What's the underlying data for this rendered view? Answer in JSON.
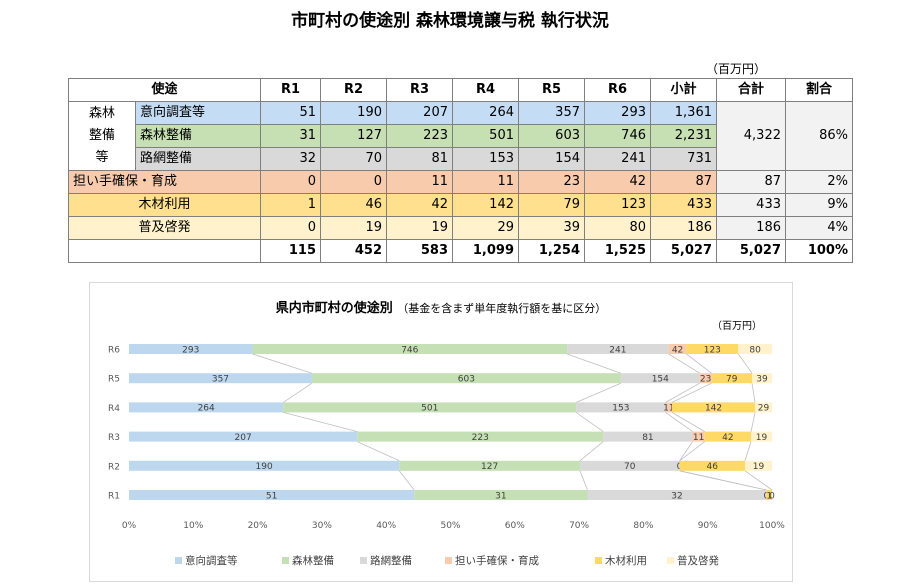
{
  "title": "市町村の使途別 森林環境譲与税 執行状況",
  "table": {
    "unit": "（百万円）",
    "headers": [
      "使途",
      "R1",
      "R2",
      "R3",
      "R4",
      "R5",
      "R6",
      "小計",
      "合計",
      "割合"
    ],
    "group_label_lines": [
      "森林",
      "整備",
      "等"
    ],
    "rows": [
      {
        "label": "意向調査等",
        "values": [
          "51",
          "190",
          "207",
          "264",
          "357",
          "293"
        ],
        "subtotal": "1,361"
      },
      {
        "label": "森林整備",
        "values": [
          "31",
          "127",
          "223",
          "501",
          "603",
          "746"
        ],
        "subtotal": "2,231"
      },
      {
        "label": "路網整備",
        "values": [
          "32",
          "70",
          "81",
          "153",
          "154",
          "241"
        ],
        "subtotal": "731"
      },
      {
        "label": "担い手確保・育成",
        "values": [
          "0",
          "0",
          "11",
          "11",
          "23",
          "42"
        ],
        "subtotal": "87",
        "total": "87",
        "share": "2%"
      },
      {
        "label": "木材利用",
        "values": [
          "1",
          "46",
          "42",
          "142",
          "79",
          "123"
        ],
        "subtotal": "433",
        "total": "433",
        "share": "9%"
      },
      {
        "label": "普及啓発",
        "values": [
          "0",
          "19",
          "19",
          "29",
          "39",
          "80"
        ],
        "subtotal": "186",
        "total": "186",
        "share": "4%"
      }
    ],
    "group_total": "4,322",
    "group_share": "86%",
    "totals": [
      "115",
      "452",
      "583",
      "1,099",
      "1,254",
      "1,525",
      "5,027",
      "5,027",
      "100%"
    ]
  },
  "chart_data": {
    "type": "bar",
    "orientation": "horizontal",
    "stacked": "percent",
    "title": "県内市町村の使途別",
    "subtitle": "（基金を含まず単年度執行額を基に区分）",
    "unit": "（百万円）",
    "categories": [
      "R6",
      "R5",
      "R4",
      "R3",
      "R2",
      "R1"
    ],
    "series": [
      {
        "name": "意向調査等",
        "color": "#bdd7ee",
        "values": [
          293,
          357,
          264,
          207,
          190,
          51
        ]
      },
      {
        "name": "森林整備",
        "color": "#c5e0b4",
        "values": [
          746,
          603,
          501,
          223,
          127,
          31
        ]
      },
      {
        "name": "路網整備",
        "color": "#d9d9d9",
        "values": [
          241,
          154,
          153,
          81,
          70,
          32
        ]
      },
      {
        "name": "担い手確保・育成",
        "color": "#f8cbad",
        "values": [
          42,
          23,
          11,
          11,
          0,
          0
        ]
      },
      {
        "name": "木材利用",
        "color": "#ffd966",
        "values": [
          123,
          79,
          142,
          42,
          46,
          1
        ]
      },
      {
        "name": "普及啓発",
        "color": "#fff2cc",
        "values": [
          80,
          39,
          29,
          19,
          19,
          0
        ]
      }
    ],
    "x_ticks": [
      "0%",
      "10%",
      "20%",
      "30%",
      "40%",
      "50%",
      "60%",
      "70%",
      "80%",
      "90%",
      "100%"
    ],
    "xlim": [
      0,
      100
    ],
    "legend_position": "bottom",
    "grid": false
  }
}
